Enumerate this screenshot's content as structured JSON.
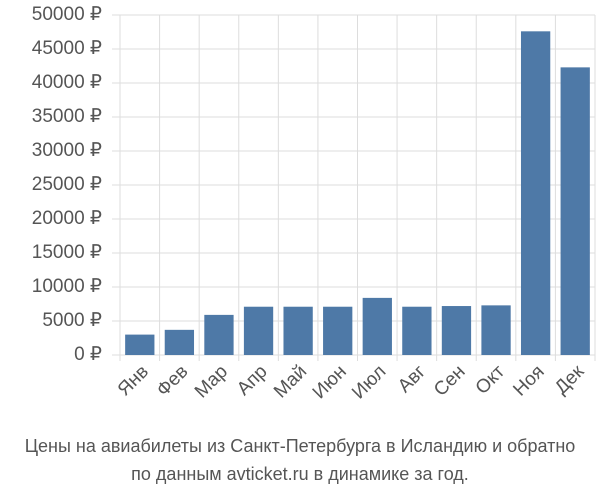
{
  "chart_data": {
    "type": "bar",
    "title": "Цены на авиабилеты из Санкт-Петербурга в Исландию и обратно",
    "subtitle": "по данным avticket.ru в динамике за год.",
    "categories": [
      "Янв",
      "Фев",
      "Мар",
      "Апр",
      "Май",
      "Июн",
      "Июл",
      "Авг",
      "Сен",
      "Окт",
      "Ноя",
      "Дек"
    ],
    "values": [
      3000,
      3700,
      5900,
      7100,
      7100,
      7100,
      8400,
      7100,
      7200,
      7300,
      47600,
      42300
    ],
    "color": "#4e79a7",
    "ylim": [
      0,
      50000
    ],
    "yticks": [
      {
        "value": 0,
        "label": "0 ₽"
      },
      {
        "value": 5000,
        "label": "5000 ₽"
      },
      {
        "value": 10000,
        "label": "10000 ₽"
      },
      {
        "value": 15000,
        "label": "15000 ₽"
      },
      {
        "value": 20000,
        "label": "20000 ₽"
      },
      {
        "value": 25000,
        "label": "25000 ₽"
      },
      {
        "value": 30000,
        "label": "30000 ₽"
      },
      {
        "value": 35000,
        "label": "35000 ₽"
      },
      {
        "value": 40000,
        "label": "40000 ₽"
      },
      {
        "value": 45000,
        "label": "45000 ₽"
      },
      {
        "value": 50000,
        "label": "50000 ₽"
      }
    ],
    "grid": true
  }
}
